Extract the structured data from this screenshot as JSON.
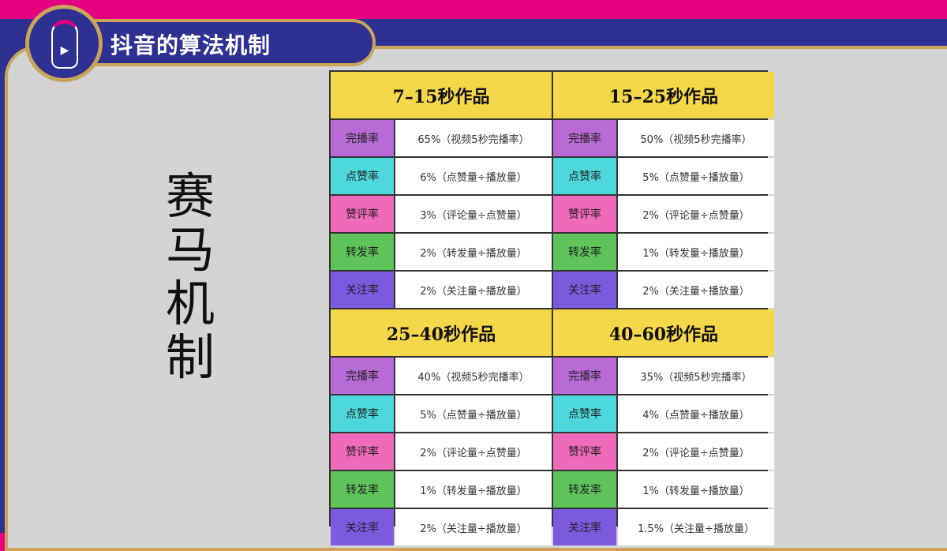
{
  "header": {
    "title": "抖音的算法机制"
  },
  "side_title": "赛马机制",
  "colors": {
    "完播率": "#b86ad6",
    "点赞率": "#4fd8dc",
    "赞评率": "#f06aba",
    "转发率": "#5ec45a",
    "关注率": "#7b5ae0",
    "header": "#f5d84a"
  },
  "blocks": [
    {
      "title": "7–15秒作品",
      "rows": [
        [
          "完播率",
          "65%（视频5秒完播率）"
        ],
        [
          "点赞率",
          "6%（点赞量÷播放量）"
        ],
        [
          "赞评率",
          "3%（评论量÷点赞量）"
        ],
        [
          "转发率",
          "2%（转发量÷播放量）"
        ],
        [
          "关注率",
          "2%（关注量÷播放量）"
        ]
      ]
    },
    {
      "title": "15–25秒作品",
      "rows": [
        [
          "完播率",
          "50%（视频5秒完播率）"
        ],
        [
          "点赞率",
          "5%（点赞量÷播放量）"
        ],
        [
          "赞评率",
          "2%（评论量÷点赞量）"
        ],
        [
          "转发率",
          "1%（转发量÷播放量）"
        ],
        [
          "关注率",
          "2%（关注量÷播放量）"
        ]
      ]
    },
    {
      "title": "25–40秒作品",
      "rows": [
        [
          "完播率",
          "40%（视频5秒完播率）"
        ],
        [
          "点赞率",
          "5%（点赞量÷播放量）"
        ],
        [
          "赞评率",
          "2%（评论量÷点赞量）"
        ],
        [
          "转发率",
          "1%（转发量÷播放量）"
        ],
        [
          "关注率",
          "2%（关注量÷播放量）"
        ]
      ]
    },
    {
      "title": "40–60秒作品",
      "rows": [
        [
          "完播率",
          "35%（视频5秒完播率）"
        ],
        [
          "点赞率",
          "4%（点赞量÷播放量）"
        ],
        [
          "赞评率",
          "2%（评论量÷点赞量）"
        ],
        [
          "转发率",
          "1%（转发量÷播放量）"
        ],
        [
          "关注率",
          "1.5%（关注量÷播放量）"
        ]
      ]
    }
  ]
}
